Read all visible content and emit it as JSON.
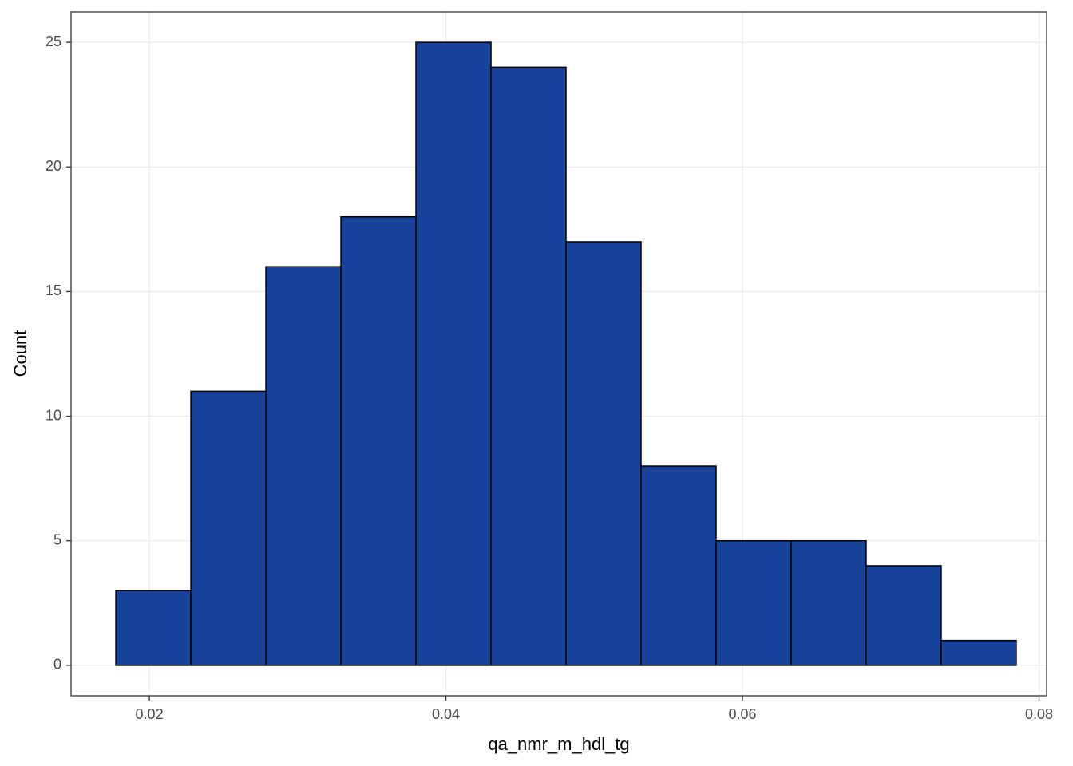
{
  "chart_data": {
    "type": "histogram",
    "x_label": "qa_nmr_m_hdl_tg",
    "y_label": "Count",
    "bins": [
      0.01774,
      0.0228,
      0.02786,
      0.03292,
      0.03798,
      0.04304,
      0.0481,
      0.05316,
      0.05822,
      0.06328,
      0.06834,
      0.0734,
      0.07846
    ],
    "counts": [
      3,
      11,
      16,
      18,
      25,
      24,
      17,
      8,
      5,
      5,
      4,
      1
    ],
    "color": "#18439a",
    "edge_color": "#000000",
    "xlim": [
      0.01472,
      0.08051
    ],
    "xticks": [
      0.02,
      0.04,
      0.06,
      0.08
    ],
    "ylim": [
      -1.22,
      26.22
    ],
    "yticks": [
      0,
      5,
      10,
      15,
      20,
      25
    ],
    "grid": true
  }
}
